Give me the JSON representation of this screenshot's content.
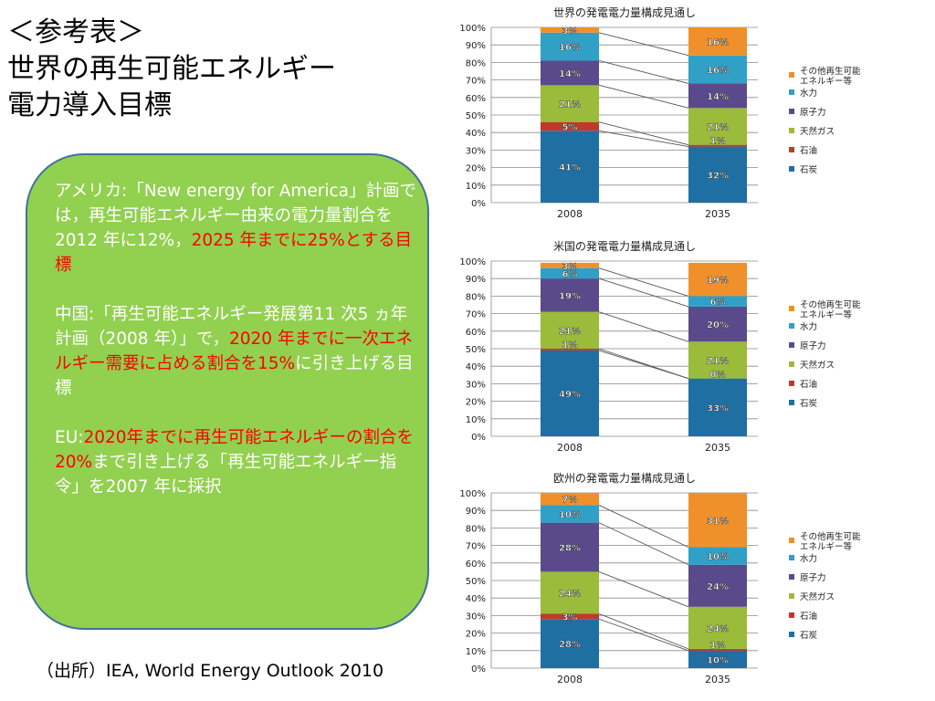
{
  "title": {
    "line1": "＜参考表＞",
    "line2": "世界の再生可能エネルギー",
    "line3": "電力導入目標"
  },
  "box": {
    "usa_pre": "アメリカ:「New energy for America」計画では，再生可能エネルギー由来の電力量割合を2012 年に12%，",
    "usa_red": "2025 年までに25%とする目標",
    "china_pre": "中国:「再生可能エネルギー発展第11 次5 ヵ年計画（2008 年）」で，",
    "china_red": "2020 年までに一次エネルギー需要に占める割合を15%",
    "china_post": "に引き上げる目標",
    "eu_pre": "EU:",
    "eu_red": "2020年までに再生可能エネルギーの割合を20%",
    "eu_post": "まで引き上げる「再生可能エネルギー指令」を2007 年に採択"
  },
  "source": "（出所）IEA, World Energy Outlook 2010",
  "colors": {
    "coal": "#1f6fa3",
    "oil": "#c0392b",
    "gas": "#9bbb3b",
    "nuclear": "#5b4a8b",
    "hydro": "#31a0c6",
    "other": "#f0902a"
  },
  "chart_data": [
    {
      "type": "bar",
      "stacked": true,
      "title": "世界の発電電力量構成見通し",
      "categories": [
        "2008",
        "2035"
      ],
      "yticks": [
        "0%",
        "10%",
        "20%",
        "30%",
        "40%",
        "50%",
        "60%",
        "70%",
        "80%",
        "90%",
        "100%"
      ],
      "ylim": [
        0,
        100
      ],
      "legend_position": "right",
      "series": [
        {
          "name": "石炭",
          "values": [
            41,
            32
          ],
          "labels": [
            "41%",
            "32%"
          ]
        },
        {
          "name": "石油",
          "values": [
            5,
            1
          ],
          "labels": [
            "5%",
            "1%"
          ]
        },
        {
          "name": "天然ガス",
          "values": [
            21,
            21
          ],
          "labels": [
            "21%",
            "21%"
          ]
        },
        {
          "name": "原子力",
          "values": [
            14,
            14
          ],
          "labels": [
            "14%",
            "14%"
          ]
        },
        {
          "name": "水力",
          "values": [
            16,
            16
          ],
          "labels": [
            "16%",
            "16%"
          ]
        },
        {
          "name": "その他再生可能エネルギー等",
          "values": [
            3,
            16
          ],
          "labels": [
            "3%",
            "16%"
          ]
        }
      ]
    },
    {
      "type": "bar",
      "stacked": true,
      "title": "米国の発電電力量構成見通し",
      "categories": [
        "2008",
        "2035"
      ],
      "yticks": [
        "0%",
        "10%",
        "20%",
        "30%",
        "40%",
        "50%",
        "60%",
        "70%",
        "80%",
        "90%",
        "100%"
      ],
      "ylim": [
        0,
        100
      ],
      "legend_position": "right",
      "series": [
        {
          "name": "石炭",
          "values": [
            49,
            33
          ],
          "labels": [
            "49%",
            "33%"
          ]
        },
        {
          "name": "石油",
          "values": [
            1,
            0
          ],
          "labels": [
            "1%",
            "0%"
          ]
        },
        {
          "name": "天然ガス",
          "values": [
            21,
            21
          ],
          "labels": [
            "21%",
            "21%"
          ]
        },
        {
          "name": "原子力",
          "values": [
            19,
            20
          ],
          "labels": [
            "19%",
            "20%"
          ]
        },
        {
          "name": "水力",
          "values": [
            6,
            6
          ],
          "labels": [
            "6%",
            "6%"
          ]
        },
        {
          "name": "その他再生可能エネルギー等",
          "values": [
            3,
            19
          ],
          "labels": [
            "3%",
            "19%"
          ]
        }
      ]
    },
    {
      "type": "bar",
      "stacked": true,
      "title": "欧州の発電電力量構成見通し",
      "categories": [
        "2008",
        "2035"
      ],
      "yticks": [
        "0%",
        "10%",
        "20%",
        "30%",
        "40%",
        "50%",
        "60%",
        "70%",
        "80%",
        "90%",
        "100%"
      ],
      "ylim": [
        0,
        100
      ],
      "legend_position": "right",
      "series": [
        {
          "name": "石炭",
          "values": [
            28,
            10
          ],
          "labels": [
            "28%",
            "10%"
          ]
        },
        {
          "name": "石油",
          "values": [
            3,
            1
          ],
          "labels": [
            "3%",
            "1%"
          ]
        },
        {
          "name": "天然ガス",
          "values": [
            24,
            24
          ],
          "labels": [
            "24%",
            "24%"
          ]
        },
        {
          "name": "原子力",
          "values": [
            28,
            24
          ],
          "labels": [
            "28%",
            "24%"
          ]
        },
        {
          "name": "水力",
          "values": [
            10,
            10
          ],
          "labels": [
            "10%",
            "10%"
          ]
        },
        {
          "name": "その他再生可能エネルギー等",
          "values": [
            7,
            31
          ],
          "labels": [
            "7%",
            "31%"
          ]
        }
      ]
    }
  ]
}
